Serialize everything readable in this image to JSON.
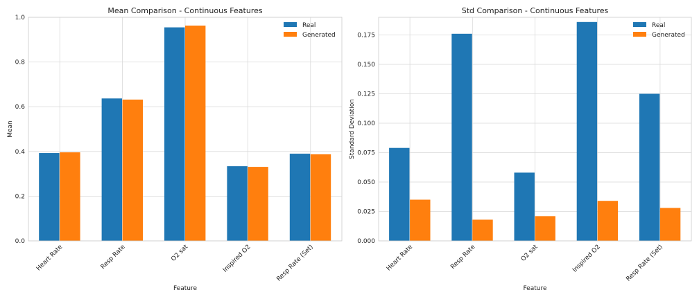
{
  "chart_data": [
    {
      "type": "bar",
      "title": "Mean Comparison - Continuous Features",
      "xlabel": "Feature",
      "ylabel": "Mean",
      "categories": [
        "Heart Rate",
        "Resp Rate",
        "O2 sat",
        "Inspired O2",
        "Resp Rate (Set)"
      ],
      "series": [
        {
          "name": "Real",
          "color": "#1f77b4",
          "values": [
            0.393,
            0.637,
            0.955,
            0.334,
            0.39
          ]
        },
        {
          "name": "Generated",
          "color": "#ff7f0e",
          "values": [
            0.396,
            0.632,
            0.963,
            0.331,
            0.387
          ]
        }
      ],
      "ylim": [
        0,
        1.0
      ],
      "yticks": [
        0.0,
        0.2,
        0.4,
        0.6,
        0.8,
        1.0
      ],
      "ytick_labels": [
        "0.0",
        "0.2",
        "0.4",
        "0.6",
        "0.8",
        "1.0"
      ],
      "grid": true,
      "legend_position": "top-right"
    },
    {
      "type": "bar",
      "title": "Std Comparison - Continuous Features",
      "xlabel": "Feature",
      "ylabel": "Standard Deviation",
      "categories": [
        "Heart Rate",
        "Resp Rate",
        "O2 sat",
        "Inspired O2",
        "Resp Rate (Set)"
      ],
      "series": [
        {
          "name": "Real",
          "color": "#1f77b4",
          "values": [
            0.079,
            0.176,
            0.058,
            0.186,
            0.125
          ]
        },
        {
          "name": "Generated",
          "color": "#ff7f0e",
          "values": [
            0.035,
            0.018,
            0.021,
            0.034,
            0.028
          ]
        }
      ],
      "ylim": [
        0,
        0.19
      ],
      "yticks": [
        0.0,
        0.025,
        0.05,
        0.075,
        0.1,
        0.125,
        0.15,
        0.175
      ],
      "ytick_labels": [
        "0.000",
        "0.025",
        "0.050",
        "0.075",
        "0.100",
        "0.125",
        "0.150",
        "0.175"
      ],
      "grid": true,
      "legend_position": "top-right"
    }
  ]
}
